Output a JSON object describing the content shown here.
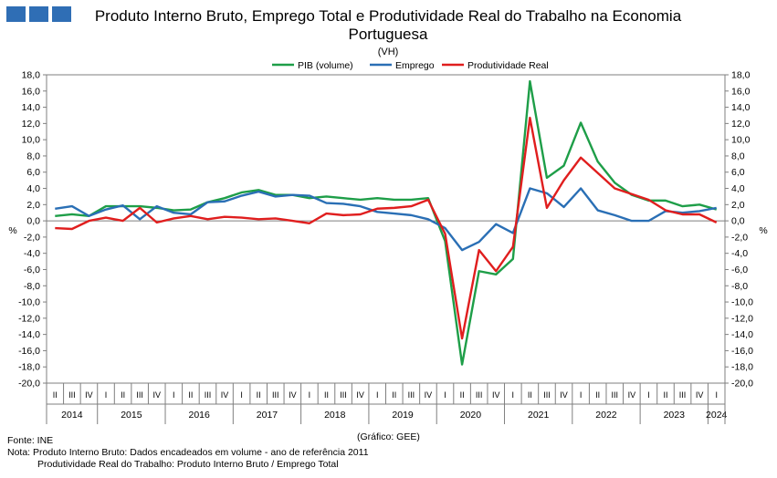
{
  "logo_colors": [
    "#2f6eb5",
    "#2f6eb5",
    "#2f6eb5"
  ],
  "title": "Produto Interno Bruto, Emprego Total e Produtividade Real do Trabalho na Economia Portuguesa",
  "subtitle": "(VH)",
  "footer": {
    "source": "Fonte: INE",
    "credit": "(Gráfico: GEE)",
    "note1": "Nota: Produto Interno Bruto: Dados encadeados em volume - ano de referência 2011",
    "note2": "Produtividade Real do Trabalho: Produto Interno Bruto / Emprego Total"
  },
  "chart_data": {
    "type": "line",
    "ylabel": "%",
    "y2label": "%",
    "ylim": [
      -20,
      18
    ],
    "ytick_step": 2,
    "legend_position": "top",
    "quarter_labels": [
      "II",
      "III",
      "IV",
      "I",
      "II",
      "III",
      "IV",
      "I",
      "II",
      "III",
      "IV",
      "I",
      "II",
      "III",
      "IV",
      "I",
      "II",
      "III",
      "IV",
      "I",
      "II",
      "III",
      "IV",
      "I",
      "II",
      "III",
      "IV",
      "I",
      "II",
      "III",
      "IV",
      "I",
      "II",
      "III",
      "IV",
      "I",
      "II",
      "III",
      "IV",
      "I"
    ],
    "years": [
      {
        "label": "2014",
        "start": 0,
        "end": 2
      },
      {
        "label": "2015",
        "start": 3,
        "end": 6
      },
      {
        "label": "2016",
        "start": 7,
        "end": 10
      },
      {
        "label": "2017",
        "start": 11,
        "end": 14
      },
      {
        "label": "2018",
        "start": 15,
        "end": 18
      },
      {
        "label": "2019",
        "start": 19,
        "end": 22
      },
      {
        "label": "2020",
        "start": 23,
        "end": 26
      },
      {
        "label": "2021",
        "start": 27,
        "end": 30
      },
      {
        "label": "2022",
        "start": 31,
        "end": 34
      },
      {
        "label": "2023",
        "start": 35,
        "end": 38
      },
      {
        "label": "2024",
        "start": 39,
        "end": 39
      }
    ],
    "series": [
      {
        "name": "PIB (volume)",
        "color": "#1e9e48",
        "values": [
          0.6,
          0.8,
          0.6,
          1.8,
          1.8,
          1.8,
          1.6,
          1.3,
          1.4,
          2.3,
          2.8,
          3.5,
          3.8,
          3.2,
          3.2,
          2.8,
          3.0,
          2.8,
          2.6,
          2.8,
          2.6,
          2.6,
          2.8,
          -2.5,
          -17.7,
          -6.2,
          -6.6,
          -4.7,
          17.2,
          5.3,
          6.8,
          12.1,
          7.3,
          4.7,
          3.2,
          2.5,
          2.5,
          1.8,
          2.0,
          1.4
        ]
      },
      {
        "name": "Emprego",
        "color": "#2a6fb5",
        "values": [
          1.5,
          1.8,
          0.6,
          1.4,
          1.9,
          0.2,
          1.8,
          1.0,
          0.8,
          2.3,
          2.4,
          3.1,
          3.6,
          3.0,
          3.2,
          3.1,
          2.2,
          2.1,
          1.8,
          1.1,
          0.9,
          0.7,
          0.2,
          -0.9,
          -3.6,
          -2.6,
          -0.4,
          -1.5,
          4.0,
          3.4,
          1.7,
          4.0,
          1.3,
          0.7,
          0.0,
          0.0,
          1.2,
          1.0,
          1.2,
          1.6
        ]
      },
      {
        "name": "Produtividade Real",
        "color": "#e01e1e",
        "values": [
          -0.9,
          -1.0,
          0.0,
          0.4,
          0.0,
          1.6,
          -0.2,
          0.3,
          0.6,
          0.2,
          0.5,
          0.4,
          0.2,
          0.3,
          0.0,
          -0.3,
          0.9,
          0.7,
          0.8,
          1.5,
          1.6,
          1.8,
          2.6,
          -1.6,
          -14.5,
          -3.6,
          -6.2,
          -3.2,
          12.7,
          1.6,
          5.0,
          7.8,
          5.9,
          4.0,
          3.3,
          2.6,
          1.3,
          0.8,
          0.8,
          -0.2
        ]
      }
    ]
  }
}
